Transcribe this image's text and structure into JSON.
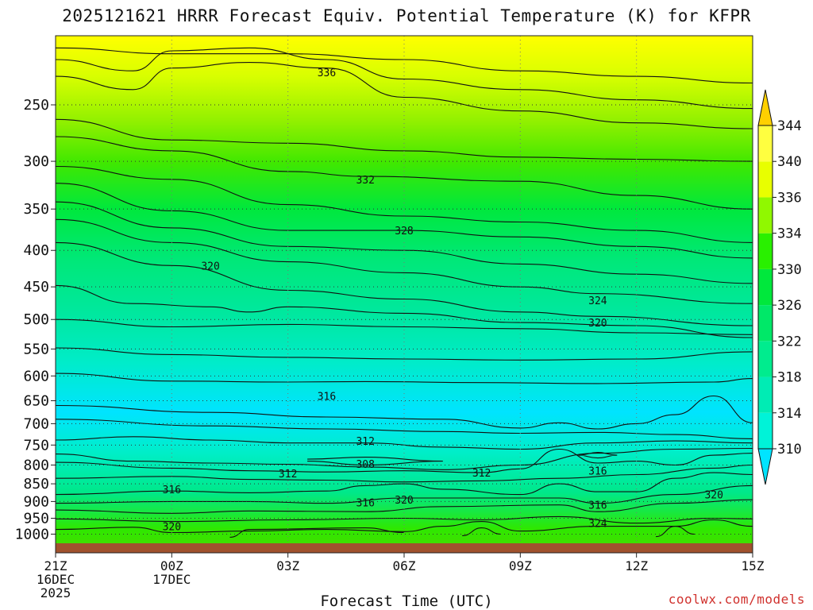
{
  "title": "2025121621 HRRR Forecast Equiv. Potential Temperature (K) for KFPR",
  "credit": "coolwx.com/models",
  "chart_data": {
    "type": "heatmap",
    "title": "2025121621 HRRR Forecast Equiv. Potential Temperature (K) for KFPR",
    "xlabel": "Forecast Time (UTC)",
    "ylabel": "",
    "xlim": [
      0,
      18
    ],
    "ylim": [
      1050,
      200
    ],
    "x_ticks": [
      {
        "x": 0,
        "lines": [
          "21Z",
          "16DEC",
          "2025"
        ]
      },
      {
        "x": 3,
        "lines": [
          "00Z",
          "17DEC"
        ]
      },
      {
        "x": 6,
        "lines": [
          "03Z"
        ]
      },
      {
        "x": 9,
        "lines": [
          "06Z"
        ]
      },
      {
        "x": 12,
        "lines": [
          "09Z"
        ]
      },
      {
        "x": 15,
        "lines": [
          "12Z"
        ]
      },
      {
        "x": 18,
        "lines": [
          "15Z"
        ]
      }
    ],
    "y_ticks": [
      250,
      300,
      350,
      400,
      450,
      500,
      550,
      600,
      650,
      700,
      750,
      800,
      850,
      900,
      950,
      1000
    ],
    "colorbar": {
      "levels": [
        310,
        314,
        318,
        322,
        326,
        330,
        334,
        336,
        340,
        344
      ],
      "colors": [
        "#00e4ff",
        "#00f3d8",
        "#00ecb4",
        "#00ec8e",
        "#00e868",
        "#00e83c",
        "#29f000",
        "#90f800",
        "#e8ff00",
        "#ffff40",
        "#ffd000"
      ]
    },
    "contour_labels": [
      {
        "text": "336",
        "x": 7.0,
        "p": 225
      },
      {
        "text": "332",
        "x": 8.0,
        "p": 318
      },
      {
        "text": "328",
        "x": 9.0,
        "p": 375
      },
      {
        "text": "324",
        "x": 14.0,
        "p": 470
      },
      {
        "text": "320",
        "x": 4.0,
        "p": 420
      },
      {
        "text": "320",
        "x": 14.0,
        "p": 505
      },
      {
        "text": "316",
        "x": 7.0,
        "p": 640
      },
      {
        "text": "312",
        "x": 8.0,
        "p": 740
      },
      {
        "text": "308",
        "x": 8.0,
        "p": 797
      },
      {
        "text": "312",
        "x": 6.0,
        "p": 822
      },
      {
        "text": "312",
        "x": 11.0,
        "p": 820
      },
      {
        "text": "316",
        "x": 3.0,
        "p": 865
      },
      {
        "text": "316",
        "x": 8.0,
        "p": 902
      },
      {
        "text": "320",
        "x": 9.0,
        "p": 895
      },
      {
        "text": "316",
        "x": 14.0,
        "p": 815
      },
      {
        "text": "316",
        "x": 14.0,
        "p": 910
      },
      {
        "text": "320",
        "x": 17.0,
        "p": 880
      },
      {
        "text": "320",
        "x": 3.0,
        "p": 975
      },
      {
        "text": "324",
        "x": 14.0,
        "p": 965
      }
    ],
    "contours": [
      {
        "level": 340,
        "points": [
          [
            0,
            208
          ],
          [
            3,
            212
          ],
          [
            6,
            212
          ],
          [
            9,
            216
          ],
          [
            12,
            224
          ],
          [
            15,
            228
          ],
          [
            18,
            233
          ]
        ]
      },
      {
        "level": 338,
        "points": [
          [
            0,
            216
          ],
          [
            2,
            224
          ],
          [
            3,
            210
          ],
          [
            5,
            208
          ],
          [
            7,
            216
          ],
          [
            9,
            230
          ],
          [
            12,
            238
          ],
          [
            15,
            246
          ],
          [
            18,
            253
          ]
        ]
      },
      {
        "level": 336,
        "points": [
          [
            0,
            228
          ],
          [
            2,
            238
          ],
          [
            3,
            222
          ],
          [
            5,
            218
          ],
          [
            7,
            222
          ],
          [
            9,
            244
          ],
          [
            12,
            255
          ],
          [
            15,
            265
          ],
          [
            18,
            270
          ]
        ]
      },
      {
        "level": 334,
        "points": [
          [
            0,
            262
          ],
          [
            3,
            280
          ],
          [
            6,
            283
          ],
          [
            9,
            290
          ],
          [
            12,
            296
          ],
          [
            15,
            298
          ],
          [
            18,
            300
          ]
        ]
      },
      {
        "level": 332,
        "points": [
          [
            0,
            277
          ],
          [
            3,
            290
          ],
          [
            6,
            310
          ],
          [
            8,
            315
          ],
          [
            12,
            320
          ],
          [
            15,
            335
          ],
          [
            18,
            350
          ]
        ]
      },
      {
        "level": 330,
        "points": [
          [
            0,
            305
          ],
          [
            3,
            318
          ],
          [
            6,
            345
          ],
          [
            9,
            358
          ],
          [
            12,
            365
          ],
          [
            15,
            375
          ],
          [
            18,
            390
          ]
        ]
      },
      {
        "level": 328,
        "points": [
          [
            0,
            322
          ],
          [
            3,
            352
          ],
          [
            6,
            375
          ],
          [
            9,
            375
          ],
          [
            12,
            383
          ],
          [
            15,
            395
          ],
          [
            18,
            410
          ]
        ]
      },
      {
        "level": 326,
        "points": [
          [
            0,
            342
          ],
          [
            3,
            372
          ],
          [
            6,
            395
          ],
          [
            9,
            400
          ],
          [
            12,
            418
          ],
          [
            15,
            432
          ],
          [
            18,
            445
          ]
        ]
      },
      {
        "level": 324,
        "points": [
          [
            0,
            362
          ],
          [
            3,
            390
          ],
          [
            6,
            415
          ],
          [
            9,
            430
          ],
          [
            12,
            450
          ],
          [
            14,
            460
          ],
          [
            18,
            475
          ]
        ]
      },
      {
        "level": 320,
        "points": [
          [
            0,
            390
          ],
          [
            3,
            420
          ],
          [
            6,
            455
          ],
          [
            9,
            468
          ],
          [
            12,
            488
          ],
          [
            14,
            495
          ],
          [
            18,
            510
          ]
        ]
      },
      {
        "level": 319,
        "points": [
          [
            0,
            448
          ],
          [
            2,
            475
          ],
          [
            4,
            480
          ],
          [
            5,
            488
          ],
          [
            6,
            480
          ],
          [
            9,
            490
          ],
          [
            12,
            505
          ],
          [
            15,
            510
          ],
          [
            18,
            530
          ]
        ]
      },
      {
        "level": 318,
        "points": [
          [
            0,
            500
          ],
          [
            3,
            512
          ],
          [
            6,
            508
          ],
          [
            9,
            512
          ],
          [
            12,
            515
          ],
          [
            15,
            522
          ],
          [
            18,
            525
          ]
        ]
      },
      {
        "level": 317,
        "points": [
          [
            0,
            548
          ],
          [
            3,
            560
          ],
          [
            6,
            565
          ],
          [
            9,
            568
          ],
          [
            12,
            570
          ],
          [
            15,
            568
          ],
          [
            18,
            555
          ]
        ]
      },
      {
        "level": 316,
        "points": [
          [
            0,
            595
          ],
          [
            3,
            610
          ],
          [
            6,
            612
          ],
          [
            8,
            611
          ],
          [
            11,
            613
          ],
          [
            14,
            615
          ],
          [
            17,
            612
          ],
          [
            18,
            605
          ]
        ]
      },
      {
        "level": 315,
        "points": [
          [
            0,
            660
          ],
          [
            4,
            675
          ],
          [
            7,
            685
          ],
          [
            10,
            690
          ],
          [
            12,
            710
          ],
          [
            13,
            698
          ],
          [
            14,
            712
          ],
          [
            15,
            700
          ],
          [
            16,
            680
          ],
          [
            17,
            640
          ],
          [
            18,
            698
          ]
        ]
      },
      {
        "level": 314,
        "points": [
          [
            0,
            690
          ],
          [
            4,
            705
          ],
          [
            7,
            712
          ],
          [
            10,
            718
          ],
          [
            12,
            722
          ],
          [
            14,
            720
          ],
          [
            16,
            725
          ],
          [
            18,
            735
          ]
        ]
      },
      {
        "level": 312,
        "points": [
          [
            0,
            738
          ],
          [
            2,
            730
          ],
          [
            4,
            738
          ],
          [
            6,
            745
          ],
          [
            8,
            745
          ],
          [
            10,
            755
          ],
          [
            12,
            760
          ],
          [
            14,
            745
          ],
          [
            16,
            740
          ],
          [
            18,
            745
          ]
        ]
      },
      {
        "level": 311,
        "points": [
          [
            0,
            772
          ],
          [
            2,
            790
          ],
          [
            4,
            795
          ],
          [
            6,
            798
          ],
          [
            8,
            805
          ],
          [
            10,
            812
          ],
          [
            12,
            800
          ],
          [
            14,
            770
          ],
          [
            16,
            760
          ],
          [
            18,
            758
          ]
        ]
      },
      {
        "level": 312.5,
        "points": [
          [
            0,
            793
          ],
          [
            3,
            808
          ],
          [
            5,
            815
          ],
          [
            7,
            818
          ],
          [
            9,
            815
          ],
          [
            11,
            820
          ],
          [
            12,
            810
          ],
          [
            13,
            760
          ],
          [
            14,
            795
          ],
          [
            15,
            790
          ],
          [
            16,
            800
          ],
          [
            17,
            775
          ],
          [
            18,
            770
          ]
        ]
      },
      {
        "level": 313,
        "points": [
          [
            0,
            835
          ],
          [
            3,
            830
          ],
          [
            5,
            838
          ],
          [
            7,
            840
          ],
          [
            9,
            845
          ],
          [
            11,
            842
          ],
          [
            13,
            835
          ],
          [
            15,
            825
          ],
          [
            17,
            808
          ],
          [
            18,
            800
          ]
        ]
      },
      {
        "level": 316.5,
        "points": [
          [
            0,
            880
          ],
          [
            3,
            870
          ],
          [
            5,
            875
          ],
          [
            7,
            870
          ],
          [
            8,
            855
          ],
          [
            9,
            850
          ],
          [
            10,
            865
          ],
          [
            12,
            880
          ],
          [
            13,
            850
          ],
          [
            14,
            872
          ],
          [
            15,
            872
          ],
          [
            16,
            835
          ],
          [
            17,
            820
          ],
          [
            18,
            825
          ]
        ]
      },
      {
        "level": 317.5,
        "points": [
          [
            0,
            905
          ],
          [
            3,
            900
          ],
          [
            5,
            900
          ],
          [
            7,
            905
          ],
          [
            9,
            890
          ],
          [
            11,
            890
          ],
          [
            13,
            890
          ],
          [
            14,
            905
          ],
          [
            16,
            880
          ],
          [
            18,
            855
          ]
        ]
      },
      {
        "level": 318.5,
        "points": [
          [
            0,
            925
          ],
          [
            3,
            935
          ],
          [
            5,
            928
          ],
          [
            8,
            930
          ],
          [
            10,
            915
          ],
          [
            13,
            910
          ],
          [
            14,
            930
          ],
          [
            16,
            905
          ],
          [
            18,
            895
          ]
        ]
      },
      {
        "level": 320.5,
        "points": [
          [
            0,
            952
          ],
          [
            3,
            960
          ],
          [
            6,
            955
          ],
          [
            9,
            950
          ],
          [
            11,
            955
          ],
          [
            13,
            945
          ],
          [
            15,
            965
          ],
          [
            17,
            950
          ],
          [
            18,
            952
          ]
        ]
      },
      {
        "level": 322,
        "points": [
          [
            0,
            985
          ],
          [
            2,
            978
          ],
          [
            3,
            995
          ],
          [
            5,
            990
          ],
          [
            7,
            985
          ],
          [
            9,
            992
          ],
          [
            10,
            975
          ],
          [
            11,
            960
          ],
          [
            12,
            990
          ],
          [
            14,
            975
          ],
          [
            16,
            975
          ],
          [
            17,
            955
          ],
          [
            18,
            975
          ]
        ]
      },
      {
        "level": 324.5,
        "points": [
          [
            4.5,
            1010
          ],
          [
            5,
            985
          ],
          [
            8,
            980
          ],
          [
            9,
            995
          ]
        ]
      },
      {
        "level": 325,
        "points": [
          [
            10.5,
            1005
          ],
          [
            11,
            980
          ],
          [
            11.5,
            1000
          ]
        ]
      },
      {
        "level": 325.5,
        "points": [
          [
            15.5,
            1008
          ],
          [
            16,
            975
          ],
          [
            16.5,
            1000
          ]
        ]
      },
      {
        "level": 316.2,
        "points": [
          [
            13.5,
            775
          ],
          [
            14,
            768
          ],
          [
            14.5,
            775
          ],
          [
            14,
            782
          ],
          [
            13.5,
            775
          ]
        ]
      },
      {
        "level": 308,
        "points": [
          [
            6.5,
            785
          ],
          [
            8,
            780
          ],
          [
            10,
            790
          ],
          [
            8,
            800
          ],
          [
            6.5,
            790
          ]
        ]
      }
    ]
  }
}
